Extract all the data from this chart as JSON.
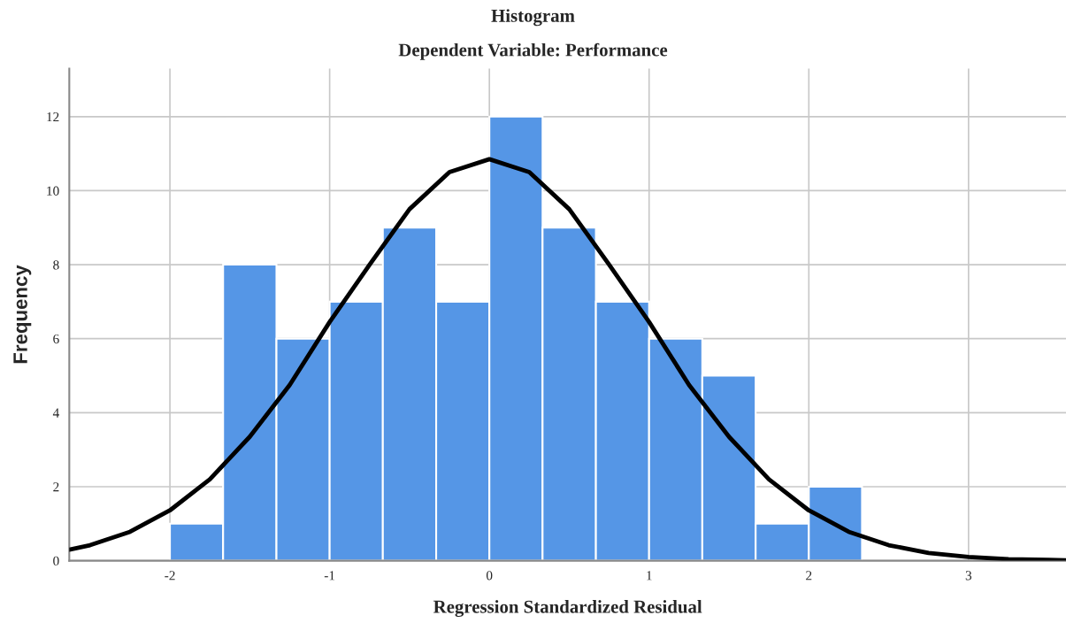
{
  "chart_data": {
    "type": "histogram",
    "title": "Histogram",
    "subtitle": "Dependent Variable: Performance",
    "xlabel": "Regression Standardized Residual",
    "ylabel": "Frequency",
    "bins": [
      -2,
      -1.667,
      -1.333,
      -1,
      -0.667,
      -0.333,
      0,
      0.333,
      0.667,
      1,
      1.333,
      1.667,
      2,
      2.333
    ],
    "values": [
      1,
      8,
      6,
      7,
      9,
      7,
      12,
      9,
      7,
      6,
      5,
      1,
      2
    ],
    "color": "#5596e6",
    "series": [
      {
        "type": "line",
        "color": "#000000",
        "x": [
          -2.63,
          -2.5,
          -2.25,
          -2,
          -1.75,
          -1.5,
          -1.25,
          -1,
          -0.75,
          -0.5,
          -0.25,
          0,
          0.25,
          0.5,
          0.75,
          1,
          1.25,
          1.5,
          1.75,
          2,
          2.25,
          2.5,
          2.75,
          3,
          3.25,
          3.5,
          3.61
        ],
        "values": [
          0.3,
          0.42,
          0.78,
          1.36,
          2.2,
          3.35,
          4.75,
          6.45,
          8.0,
          9.5,
          10.5,
          10.85,
          10.5,
          9.5,
          8.0,
          6.45,
          4.75,
          3.35,
          2.2,
          1.36,
          0.78,
          0.42,
          0.21,
          0.1,
          0.04,
          0.02,
          0.01
        ]
      }
    ],
    "xlim": [
      -2.63,
      3.61
    ],
    "ylim": [
      0,
      13.3
    ],
    "xticks": [
      -2,
      -1,
      0,
      1,
      2,
      3
    ],
    "yticks": [
      0,
      2,
      4,
      6,
      8,
      10,
      12
    ],
    "grid": true,
    "legend": false
  }
}
